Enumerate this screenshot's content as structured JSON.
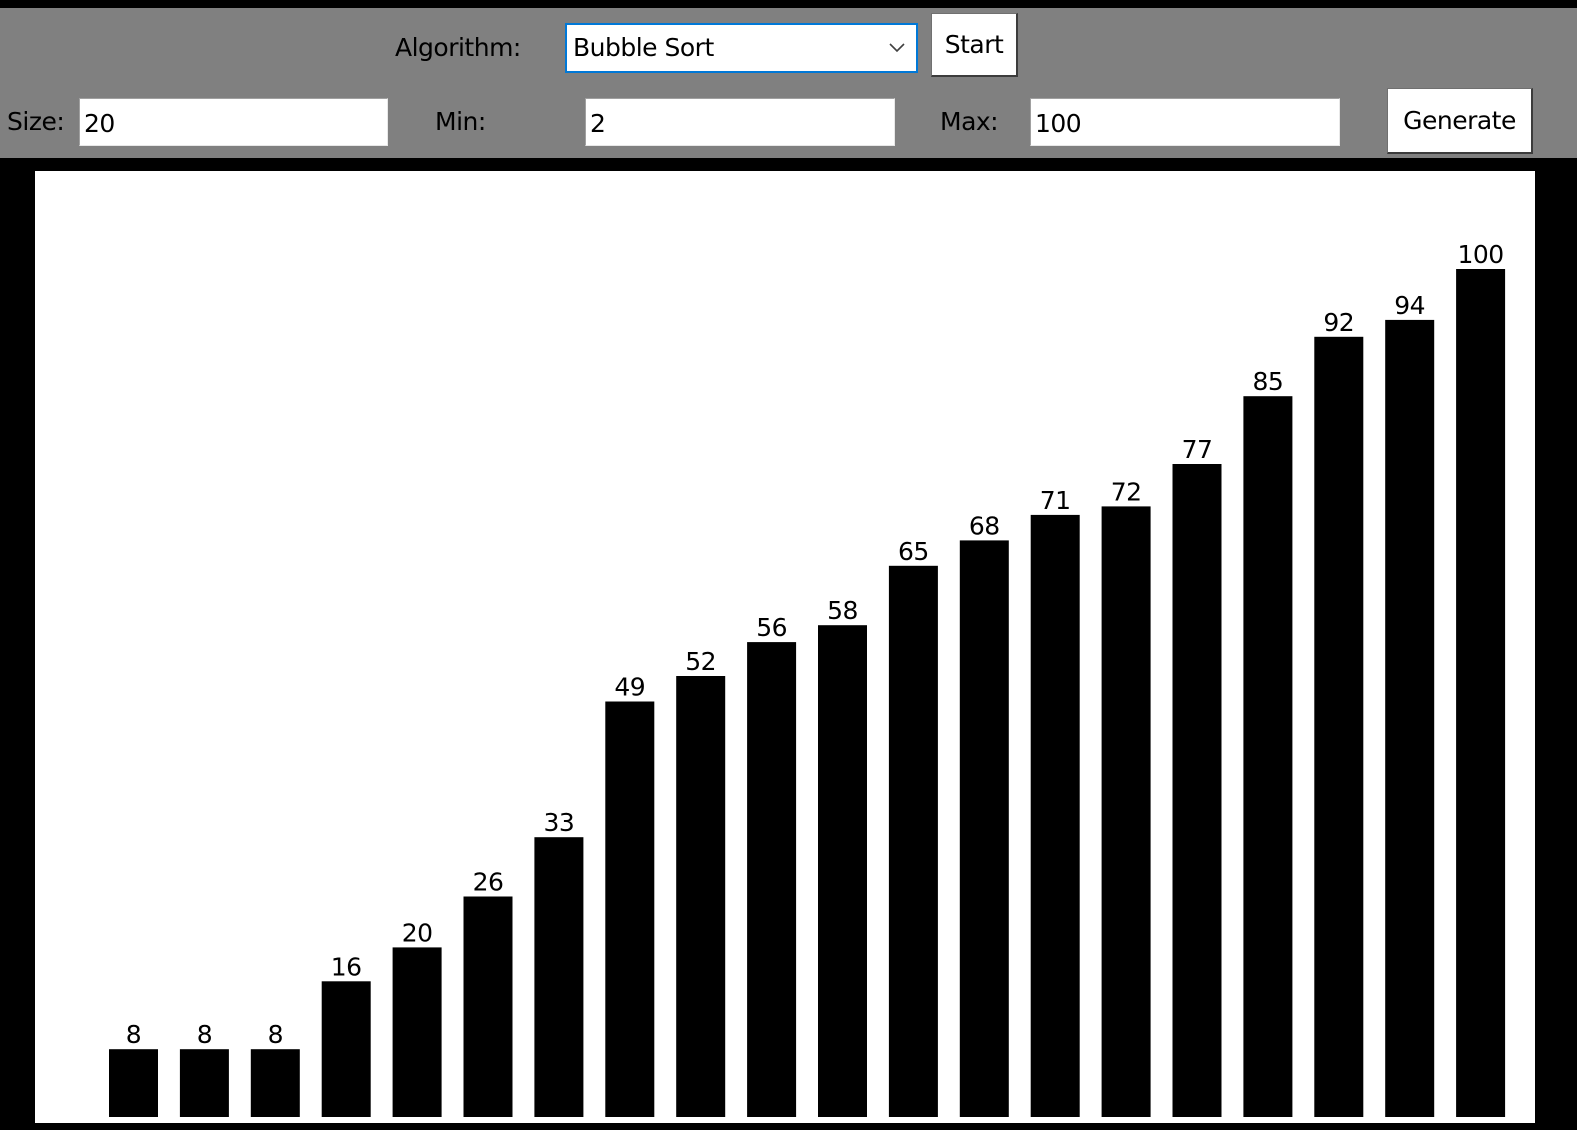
{
  "toolbar": {
    "algorithm_label": "Algorithm:",
    "algorithm_selected": "Bubble Sort",
    "start_label": "Start",
    "size_label": "Size:",
    "size_value": "20",
    "min_label": "Min:",
    "min_value": "2",
    "max_label": "Max:",
    "max_value": "100",
    "generate_label": "Generate",
    "dropdown_icon": "chevron-down-icon"
  },
  "colors": {
    "toolbar_bg": "#808080",
    "window_bg": "#000000",
    "canvas_bg": "#ffffff",
    "bar_color": "#000000",
    "combo_focus_border": "#0078d7"
  },
  "chart_data": {
    "type": "bar",
    "values": [
      8,
      8,
      8,
      16,
      20,
      26,
      33,
      49,
      52,
      56,
      58,
      65,
      68,
      71,
      72,
      77,
      85,
      92,
      94,
      100
    ],
    "data_labels": [
      "8",
      "8",
      "8",
      "16",
      "20",
      "26",
      "33",
      "49",
      "52",
      "56",
      "58",
      "65",
      "68",
      "71",
      "72",
      "77",
      "85",
      "92",
      "94",
      "100"
    ],
    "ylim": [
      0,
      100
    ],
    "grid": false
  }
}
